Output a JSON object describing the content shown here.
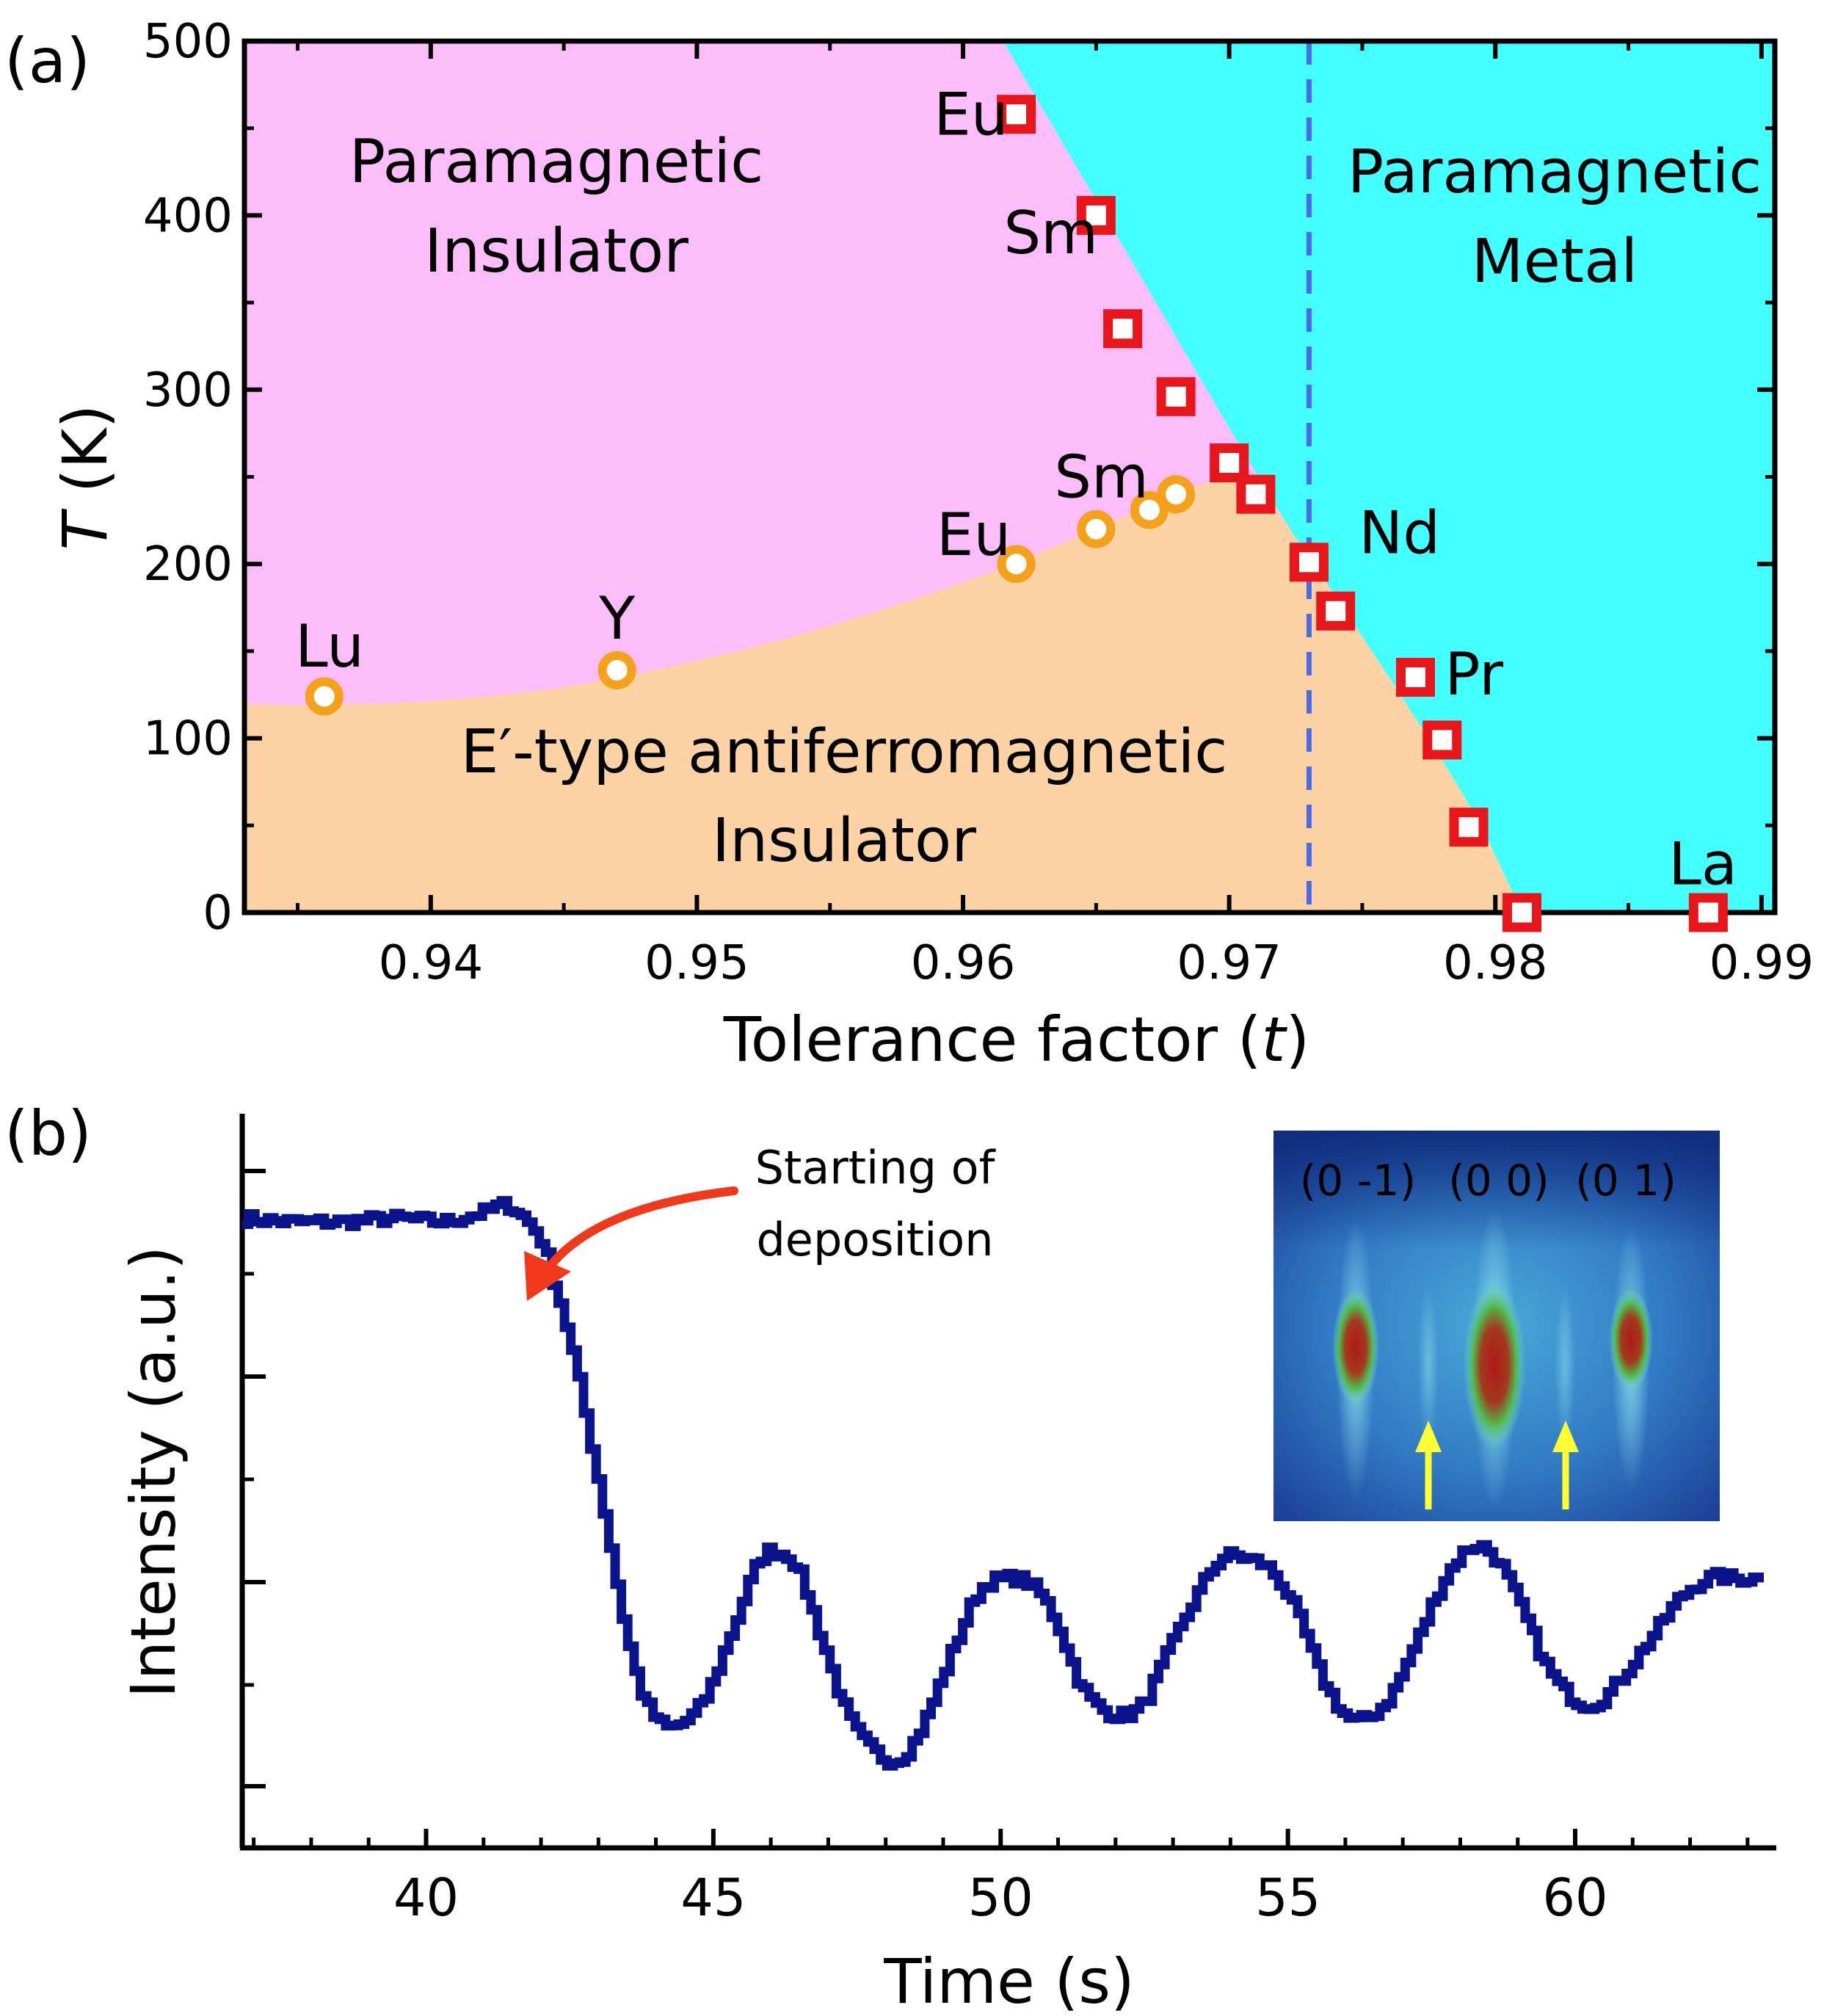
{
  "chart_data": [
    {
      "panel_label": "(a)",
      "type": "scatter",
      "xlabel": "Tolerance factor (t)",
      "xlabel_parts": {
        "prefix": "Tolerance factor (",
        "var": "t",
        "suffix": ")"
      },
      "ylabel": "T (K)",
      "ylabel_parts": {
        "var": "T",
        "suffix": " (K)"
      },
      "xlim": [
        0.933,
        0.9905
      ],
      "ylim": [
        0,
        500
      ],
      "xticks": [
        0.94,
        0.95,
        0.96,
        0.97,
        0.98,
        0.99
      ],
      "xtick_labels": [
        "0.94",
        "0.95",
        "0.96",
        "0.97",
        "0.98",
        "0.99"
      ],
      "yticks": [
        0,
        100,
        200,
        300,
        400,
        500
      ],
      "ytick_labels": [
        "0",
        "100",
        "200",
        "300",
        "400",
        "500"
      ],
      "region_labels": [
        {
          "lines": [
            "Paramagnetic",
            "Insulator"
          ]
        },
        {
          "lines": [
            "Paramagnetic",
            "Metal"
          ]
        },
        {
          "lines": [
            "E′-type antiferromagnetic",
            "Insulator"
          ]
        }
      ],
      "colors": {
        "paramagnetic_insulator": "#fdbdfb",
        "paramagnetic_metal": "#44ffff",
        "afm_insulator": "#fdd3a6",
        "square": "#e8151b",
        "circle": "#f5a11c",
        "dashed_line": "#4a6ae6"
      },
      "mi_boundary": {
        "x": [
          0.9615,
          0.9705,
          0.981
        ],
        "y": [
          500,
          265,
          0
        ]
      },
      "afm_boundary": {
        "x": [
          0.933,
          0.9355,
          0.9405,
          0.946,
          0.9535,
          0.961,
          0.9665,
          0.9705,
          0.9725,
          0.9785,
          0.981
        ],
        "y": [
          120,
          119,
          122,
          132,
          158,
          195,
          230,
          250,
          215,
          75,
          0
        ]
      },
      "dashed_line_x": 0.973,
      "series": [
        {
          "marker": "square",
          "points": [
            {
              "x": 0.962,
              "y": 458
            },
            {
              "x": 0.965,
              "y": 400
            },
            {
              "x": 0.966,
              "y": 335
            },
            {
              "x": 0.968,
              "y": 296
            },
            {
              "x": 0.97,
              "y": 258
            },
            {
              "x": 0.971,
              "y": 240
            },
            {
              "x": 0.973,
              "y": 201
            },
            {
              "x": 0.974,
              "y": 173
            },
            {
              "x": 0.977,
              "y": 135
            },
            {
              "x": 0.978,
              "y": 99
            },
            {
              "x": 0.979,
              "y": 49
            },
            {
              "x": 0.981,
              "y": 0
            },
            {
              "x": 0.988,
              "y": 0
            }
          ]
        },
        {
          "marker": "circle",
          "points": [
            {
              "x": 0.936,
              "y": 124
            },
            {
              "x": 0.947,
              "y": 139
            },
            {
              "x": 0.962,
              "y": 200
            },
            {
              "x": 0.965,
              "y": 220
            },
            {
              "x": 0.967,
              "y": 231
            },
            {
              "x": 0.968,
              "y": 240
            }
          ]
        }
      ],
      "annotations": [
        {
          "text": "Eu",
          "x": 0.9603,
          "y": 458
        },
        {
          "text": "Sm",
          "x": 0.9633,
          "y": 390
        },
        {
          "text": "Eu",
          "x": 0.9604,
          "y": 217
        },
        {
          "text": "Sm",
          "x": 0.9652,
          "y": 250
        },
        {
          "text": "Nd",
          "x": 0.9764,
          "y": 218
        },
        {
          "text": "Pr",
          "x": 0.9792,
          "y": 137
        },
        {
          "text": "Lu",
          "x": 0.9362,
          "y": 153
        },
        {
          "text": "Y",
          "x": 0.947,
          "y": 169
        },
        {
          "text": "La",
          "x": 0.9878,
          "y": 28
        }
      ]
    },
    {
      "panel_label": "(b)",
      "type": "line",
      "xlabel": "Time (s)",
      "ylabel": "Intensity (a.u.)",
      "xlim": [
        36.8,
        63.5
      ],
      "ylim": [
        0,
        100
      ],
      "xticks": [
        40,
        45,
        50,
        55,
        60
      ],
      "xtick_labels": [
        "40",
        "45",
        "50",
        "55",
        "60"
      ],
      "line_color": "#0a128c",
      "annotation": {
        "lines": [
          "Starting of",
          "deposition"
        ],
        "arrow_color": "#f0391a"
      },
      "inset": {
        "labels": [
          "(0 -1)",
          "(0 0)",
          "(0 1)"
        ],
        "label_color": "#ffff33",
        "arrow_color": "#ffff33"
      },
      "series": [
        {
          "x": [
            36.8,
            37.5,
            38.5,
            39.5,
            40.3,
            41.0,
            41.4,
            41.8,
            42.0,
            42.2,
            42.5,
            42.8,
            43.1,
            43.4,
            43.7,
            44.0,
            44.3,
            44.8,
            45.3,
            45.8,
            46.1,
            46.4,
            46.8,
            47.3,
            47.8,
            48.2,
            48.6,
            49.1,
            49.6,
            50.1,
            50.5,
            50.9,
            51.4,
            51.9,
            52.4,
            52.8,
            53.3,
            53.8,
            54.3,
            54.7,
            55.1,
            55.6,
            56.1,
            56.7,
            57.2,
            57.7,
            58.2,
            58.6,
            59.0,
            59.5,
            60.0,
            60.4,
            60.9,
            61.4,
            61.8,
            62.3,
            62.8,
            63.2
          ],
          "y": [
            90,
            89.5,
            89.5,
            90,
            89.5,
            91,
            92,
            89,
            86,
            80,
            70,
            57,
            43,
            28,
            17,
            12,
            11,
            15,
            26,
            37,
            38,
            36,
            26,
            13,
            7,
            6,
            11,
            22,
            32,
            34,
            33,
            28,
            17,
            13,
            14,
            21,
            30,
            37,
            37,
            35,
            29,
            18,
            12,
            15,
            24,
            34,
            39,
            37,
            30,
            20,
            15,
            15,
            20,
            26,
            31,
            34,
            34,
            34
          ]
        }
      ]
    }
  ]
}
